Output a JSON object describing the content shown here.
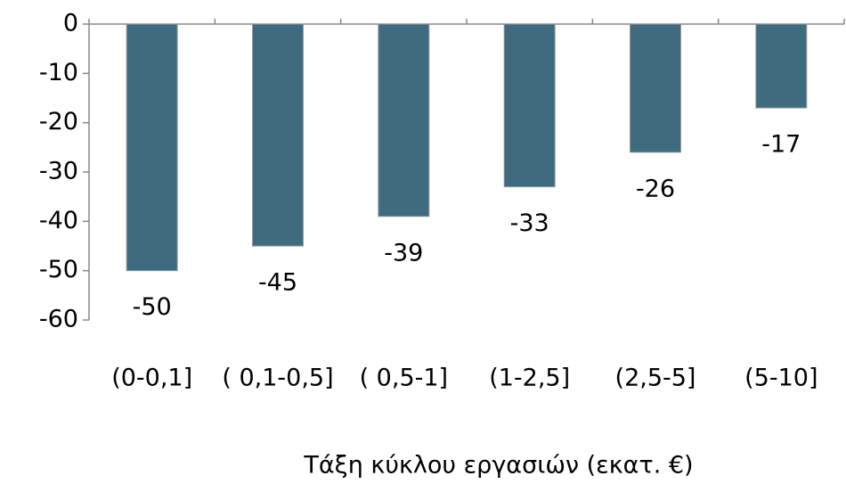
{
  "chart_data": {
    "type": "bar",
    "x_label": "Τάξη κύκλου εργασιών (εκατ. €)",
    "categories": [
      "(0-0,1]",
      "( 0,1-0,5]",
      "( 0,5-1]",
      "(1-2,5]",
      "(2,5-5]",
      "(5-10]"
    ],
    "values": [
      -50,
      -45,
      -39,
      -33,
      -26,
      -17
    ],
    "color": "#3e6b7e",
    "ylim": [
      -60,
      0
    ],
    "yticks": [
      -60,
      -50,
      -40,
      -30,
      -20,
      -10,
      0
    ],
    "grid": false
  }
}
